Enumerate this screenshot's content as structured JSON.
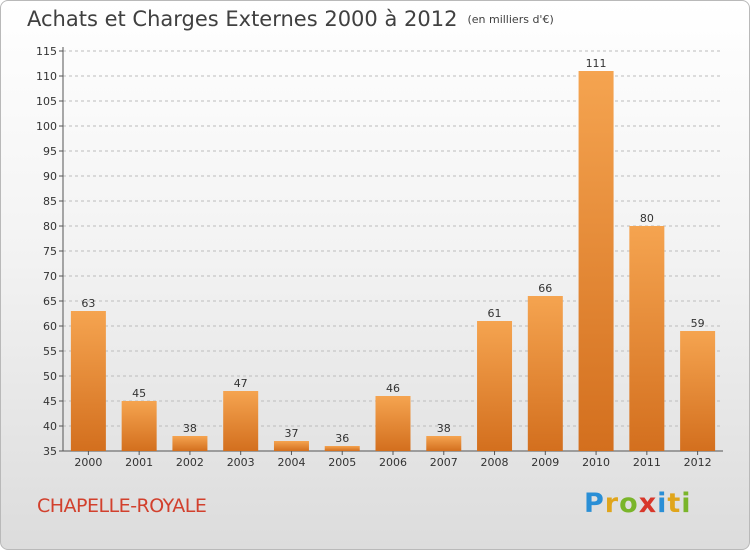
{
  "title": "Achats et Charges Externes 2000 à 2012",
  "subtitle": "(en milliers d'€)",
  "commune": "CHAPELLE-ROYALE",
  "brand": {
    "letters": [
      "P",
      "r",
      "o",
      "x",
      "i",
      "t",
      "i"
    ],
    "colors": [
      "#2a8fd6",
      "#e0a51b",
      "#7ab52a",
      "#d8372a",
      "#2a8fd6",
      "#e0a51b",
      "#7ab52a"
    ]
  },
  "colors": {
    "bar_top": "#f5a450",
    "bar_bottom": "#d36f1e",
    "axis": "#555555",
    "grid": "#bcbcbc"
  },
  "chart_data": {
    "type": "bar",
    "categories": [
      "2000",
      "2001",
      "2002",
      "2003",
      "2004",
      "2005",
      "2006",
      "2007",
      "2008",
      "2009",
      "2010",
      "2011",
      "2012"
    ],
    "values": [
      63,
      45,
      38,
      47,
      37,
      36,
      46,
      38,
      61,
      66,
      111,
      80,
      59
    ],
    "data_labels": [
      "63",
      "45",
      "38",
      "47",
      "37",
      "36",
      "46",
      "38",
      "61",
      "66",
      "111",
      "80",
      "59"
    ],
    "ylim": [
      35,
      115
    ],
    "yticks": [
      35,
      40,
      45,
      50,
      55,
      60,
      65,
      70,
      75,
      80,
      85,
      90,
      95,
      100,
      105,
      110,
      115
    ],
    "grid": "horizontal dashed",
    "xlabel": "",
    "ylabel": ""
  }
}
